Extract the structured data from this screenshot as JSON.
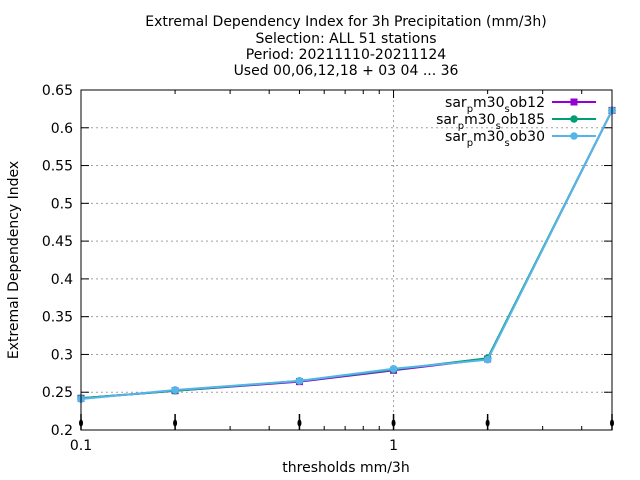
{
  "chart_data": {
    "type": "line",
    "title_lines": [
      "Extremal Dependency Index  for 3h Precipitation (mm/3h)",
      "Selection: ALL     51 stations",
      "Period: 20211110-20211124",
      "Used 00,06,12,18 + 03 04 ... 36"
    ],
    "xlabel": "thresholds mm/3h",
    "ylabel": "Extremal Dependency Index",
    "x_scale": "log",
    "xlim": [
      0.1,
      5
    ],
    "ylim": [
      0.2,
      0.65
    ],
    "x_ticks": [
      {
        "value": 0.1,
        "label": "0.1"
      },
      {
        "value": 1,
        "label": "1"
      }
    ],
    "y_ticks": [
      {
        "value": 0.2,
        "label": "0.2"
      },
      {
        "value": 0.25,
        "label": "0.25"
      },
      {
        "value": 0.3,
        "label": "0.3"
      },
      {
        "value": 0.35,
        "label": "0.35"
      },
      {
        "value": 0.4,
        "label": "0.4"
      },
      {
        "value": 0.45,
        "label": "0.45"
      },
      {
        "value": 0.5,
        "label": "0.5"
      },
      {
        "value": 0.55,
        "label": "0.55"
      },
      {
        "value": 0.6,
        "label": "0.6"
      },
      {
        "value": 0.65,
        "label": "0.65"
      }
    ],
    "grid": true,
    "legend_position": "top-right",
    "threshold_markers": [
      0.1,
      0.2,
      0.5,
      1,
      2,
      5
    ],
    "x": [
      0.1,
      0.2,
      0.5,
      1,
      2,
      5
    ],
    "series": [
      {
        "name": "sar_pm30_sob12",
        "name_parts": [
          "sar",
          "p",
          "m30",
          "s",
          "ob12"
        ],
        "color": "#9400d3",
        "marker": "square",
        "values": [
          0.242,
          0.252,
          0.264,
          0.279,
          0.294,
          0.623
        ]
      },
      {
        "name": "sar_pm30_sob185",
        "name_parts": [
          "sar",
          "p",
          "m30",
          "s",
          "ob185"
        ],
        "color": "#009e73",
        "marker": "circle",
        "values": [
          0.242,
          0.252,
          0.265,
          0.28,
          0.295,
          0.623
        ]
      },
      {
        "name": "sar_pm30_sob30",
        "name_parts": [
          "sar",
          "p",
          "m30",
          "s",
          "ob30"
        ],
        "color": "#56b4e9",
        "marker": "circle",
        "values": [
          0.241,
          0.253,
          0.265,
          0.281,
          0.293,
          0.623
        ]
      }
    ]
  }
}
